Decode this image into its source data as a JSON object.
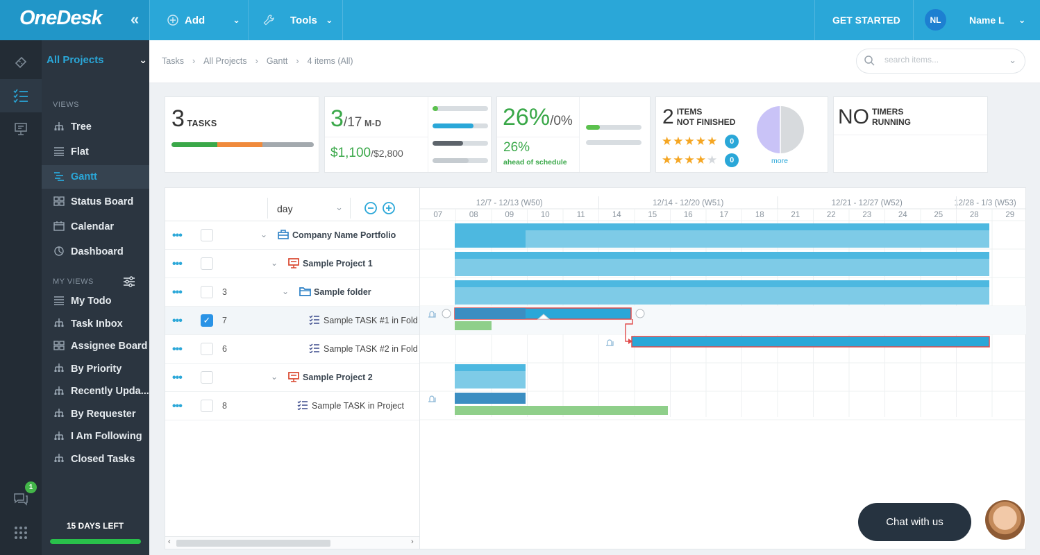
{
  "app": {
    "logo": "OneDesk",
    "collapse_glyph": "«",
    "add_label": "Add",
    "tools_label": "Tools",
    "get_started_label": "GET STARTED",
    "user_initials": "NL",
    "user_name": "Name L",
    "accent_color": "#2aa7d8"
  },
  "sidebar": {
    "project_select": "All Projects",
    "views_header": "VIEWS",
    "views": [
      {
        "label": "Tree",
        "icon": "tree-icon"
      },
      {
        "label": "Flat",
        "icon": "list-icon"
      },
      {
        "label": "Gantt",
        "icon": "gantt-icon",
        "active": true
      },
      {
        "label": "Status Board",
        "icon": "board-icon"
      },
      {
        "label": "Calendar",
        "icon": "calendar-icon"
      },
      {
        "label": "Dashboard",
        "icon": "dashboard-icon"
      }
    ],
    "my_views_header": "MY VIEWS",
    "my_views": [
      {
        "label": "My Todo",
        "icon": "list-icon"
      },
      {
        "label": "Task Inbox",
        "icon": "tree-icon"
      },
      {
        "label": "Assignee Board",
        "icon": "board-icon"
      },
      {
        "label": "By Priority",
        "icon": "tree-icon"
      },
      {
        "label": "Recently Upda...",
        "icon": "tree-icon"
      },
      {
        "label": "By Requester",
        "icon": "tree-icon"
      },
      {
        "label": "I Am Following",
        "icon": "tree-icon"
      },
      {
        "label": "Closed Tasks",
        "icon": "tree-icon"
      }
    ],
    "days_left": "15 DAYS LEFT",
    "chat_badge_count": "1"
  },
  "breadcrumb": {
    "items": [
      "Tasks",
      "All Projects",
      "Gantt",
      "4 items (All)"
    ],
    "search_placeholder": "search items..."
  },
  "stats": {
    "tasks": {
      "value": "3",
      "label": "TASKS",
      "progress": [
        0.32,
        0.32,
        0.36
      ],
      "progress_colors": [
        "#3aa849",
        "#f08a3c",
        "#a3a9ae"
      ]
    },
    "md": {
      "done": "3",
      "total": "/17",
      "unit": "M-D",
      "cost": "$1,100",
      "budget": "/$2,800",
      "bars": [
        0.1,
        0.74,
        0.55,
        0.65
      ],
      "bar_colors": [
        "#5bc14d",
        "#2aa7d8",
        "#5d646b",
        "#c5cbd0"
      ]
    },
    "schedule": {
      "pct": "26%",
      "slash": "/0%",
      "ahead_value": "26%",
      "ahead_label": "ahead of schedule",
      "bars": [
        0.25,
        0
      ]
    },
    "items": {
      "value": "2",
      "label1": "ITEMS",
      "label2": "NOT FINISHED",
      "five_star_count": "0",
      "four_star_count": "0",
      "more_label": "more",
      "pie_colors": [
        "#c9c3f7",
        "#d7dadd"
      ]
    },
    "timers": {
      "value": "NO",
      "label1": "TIMERS",
      "label2": "RUNNING"
    }
  },
  "gantt": {
    "zoom": "day",
    "weeks": [
      "12/7 - 12/13 (W50)",
      "12/14 - 12/20 (W51)",
      "12/21 - 12/27 (W52)",
      "12/28 - 1/3 (W53)"
    ],
    "days": [
      "07",
      "08",
      "09",
      "10",
      "11",
      "14",
      "15",
      "16",
      "17",
      "18",
      "21",
      "22",
      "23",
      "24",
      "25",
      "28",
      "29"
    ],
    "rows": [
      {
        "num": "",
        "label": "Company Name Portfolio",
        "type": "portfolio",
        "bold": true
      },
      {
        "num": "",
        "label": "Sample Project 1",
        "type": "project",
        "bold": true
      },
      {
        "num": "3",
        "label": "Sample folder",
        "type": "folder",
        "bold": true
      },
      {
        "num": "7",
        "label": "Sample TASK #1 in Fold",
        "type": "task",
        "checked": true
      },
      {
        "num": "6",
        "label": "Sample TASK #2 in Fold",
        "type": "task"
      },
      {
        "num": "",
        "label": "Sample Project 2",
        "type": "project",
        "bold": true
      },
      {
        "num": "8",
        "label": "Sample TASK in Project",
        "type": "task"
      }
    ]
  },
  "chat": {
    "label": "Chat with us"
  }
}
